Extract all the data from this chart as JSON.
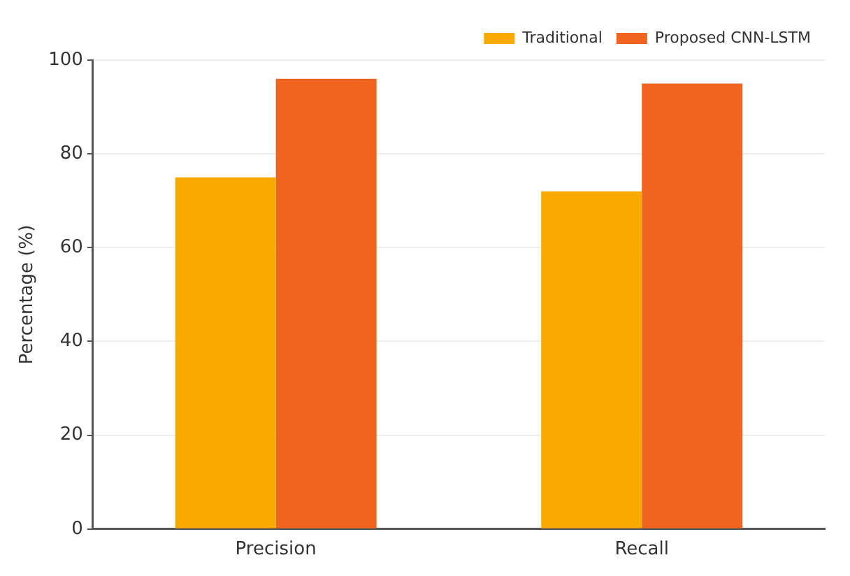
{
  "chart_data": {
    "type": "bar",
    "ylabel": "Percentage (%)",
    "categories": [
      "Precision",
      "Recall"
    ],
    "series": [
      {
        "name": "Traditional",
        "color": "#f8aa00",
        "values": [
          75,
          72
        ]
      },
      {
        "name": "Proposed CNN-LSTM",
        "color": "#f0641f",
        "values": [
          96,
          95
        ]
      }
    ],
    "ylim": [
      0,
      100
    ],
    "yticks": [
      0,
      20,
      40,
      60,
      80,
      100
    ],
    "grid": "y",
    "legend": "top right"
  }
}
